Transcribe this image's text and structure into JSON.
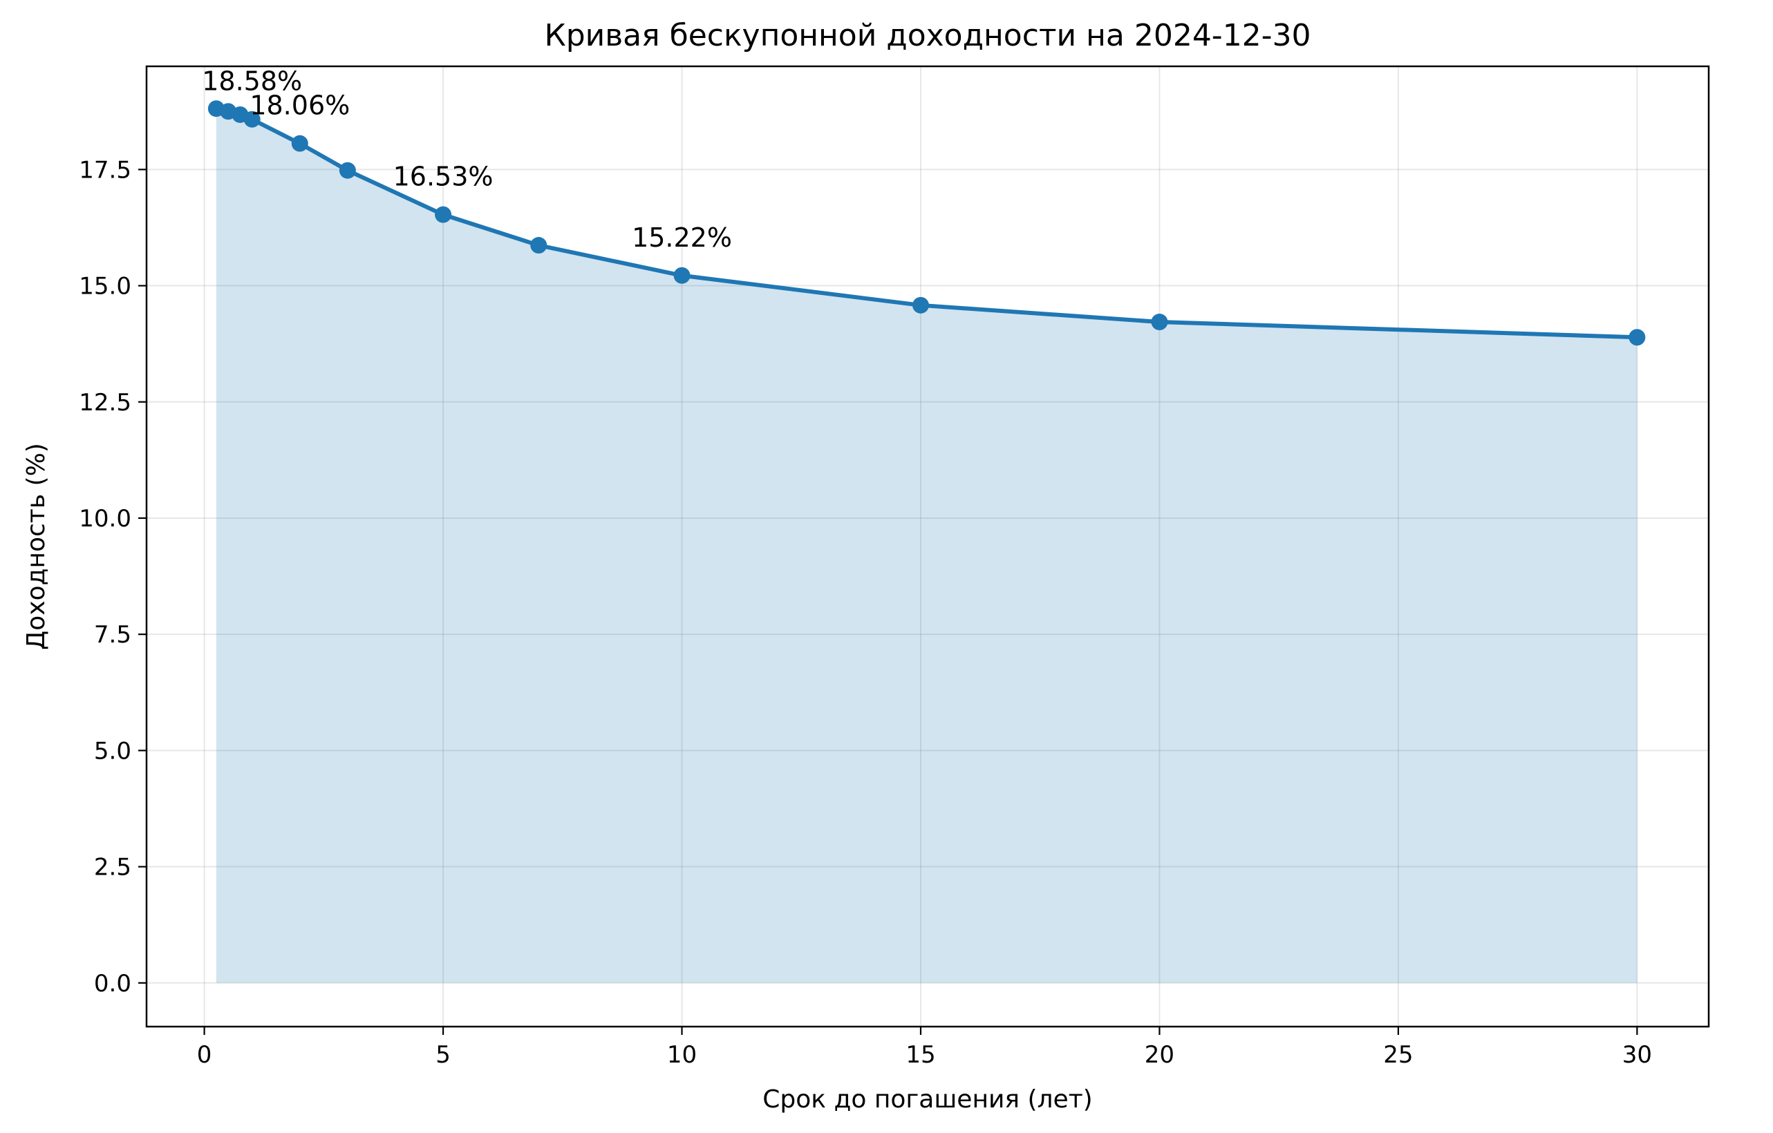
{
  "chart_data": {
    "type": "line",
    "title": "Кривая бескупонной доходности на 2024-12-30",
    "xlabel": "Срок до погашения (лет)",
    "ylabel": "Доходность (%)",
    "xlim": [
      -1.21,
      31.5
    ],
    "ylim": [
      -0.94,
      19.72
    ],
    "x_ticks": [
      "0",
      "5",
      "10",
      "15",
      "20",
      "25",
      "30"
    ],
    "y_ticks": [
      "0.0",
      "2.5",
      "5.0",
      "7.5",
      "10.0",
      "12.5",
      "15.0",
      "17.5"
    ],
    "grid": true,
    "fill_to_zero": true,
    "colors": {
      "line": "#1f77b4",
      "fill": "#1f77b4",
      "grid": "#b0b0b0"
    },
    "series": [
      {
        "x": [
          0.25,
          0.5,
          0.75,
          1,
          2,
          3,
          5,
          7,
          10,
          15,
          20,
          30
        ],
        "y": [
          18.81,
          18.75,
          18.68,
          18.58,
          18.06,
          17.48,
          16.53,
          15.87,
          15.22,
          14.58,
          14.22,
          13.89
        ]
      }
    ],
    "annotations": [
      {
        "x": 1,
        "y": 18.58,
        "text": "18.58%"
      },
      {
        "x": 2,
        "y": 18.06,
        "text": "18.06%"
      },
      {
        "x": 5,
        "y": 16.53,
        "text": "16.53%"
      },
      {
        "x": 10,
        "y": 15.22,
        "text": "15.22%"
      }
    ]
  }
}
